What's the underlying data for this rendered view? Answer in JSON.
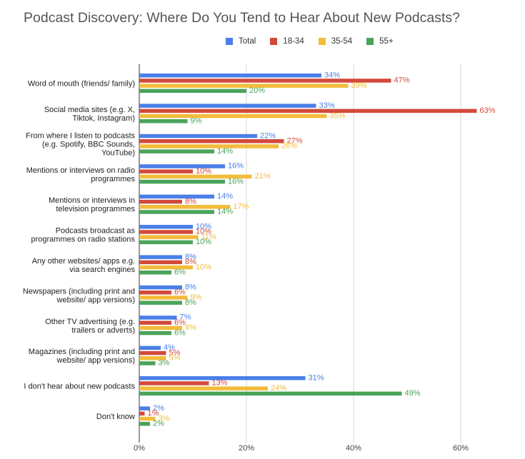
{
  "chart_data": {
    "type": "bar",
    "orientation": "horizontal",
    "title": "Podcast Discovery: Where Do You Tend to Hear About New Podcasts?",
    "categories": [
      [
        "Word of mouth (friends/ family)"
      ],
      [
        "Social media sites (e.g. X,",
        "Tiktok, Instagram)"
      ],
      [
        "From where I listen to podcasts",
        "(e.g. Spotify, BBC Sounds,",
        "YouTube)"
      ],
      [
        "Mentions or interviews on radio",
        "programmes"
      ],
      [
        "Mentions or interviews in",
        "television programmes"
      ],
      [
        "Podcasts broadcast as",
        "programmes on radio stations"
      ],
      [
        "Any other websites/ apps e.g.",
        "via search engines"
      ],
      [
        "Newspapers (including print and",
        "website/ app versions)"
      ],
      [
        "Other TV advertising (e.g.",
        "trailers or adverts)"
      ],
      [
        "Magazines (including print and",
        "website/ app versions)"
      ],
      [
        "I don't hear about new podcasts"
      ],
      [
        "Don't know"
      ]
    ],
    "series": [
      {
        "name": "Total",
        "color": "#4a7fe8",
        "values": [
          34,
          33,
          22,
          16,
          14,
          10,
          8,
          8,
          7,
          4,
          31,
          2
        ]
      },
      {
        "name": "18-34",
        "color": "#d24a3c",
        "values": [
          47,
          63,
          27,
          10,
          8,
          10,
          8,
          6,
          6,
          5,
          13,
          1
        ]
      },
      {
        "name": "35-54",
        "color": "#f2bc3b",
        "values": [
          39,
          35,
          26,
          21,
          17,
          11,
          10,
          9,
          8,
          5,
          24,
          3
        ]
      },
      {
        "name": "55+",
        "color": "#4aa35a",
        "values": [
          20,
          9,
          14,
          16,
          14,
          10,
          6,
          8,
          6,
          3,
          49,
          2
        ]
      }
    ],
    "value_suffix": "%",
    "xlim": [
      0,
      70
    ],
    "x_ticks": [
      0,
      20,
      40,
      60
    ],
    "x_tick_labels": [
      "0%",
      "20%",
      "40%",
      "60%"
    ],
    "grid": true,
    "legend_position": "top"
  }
}
